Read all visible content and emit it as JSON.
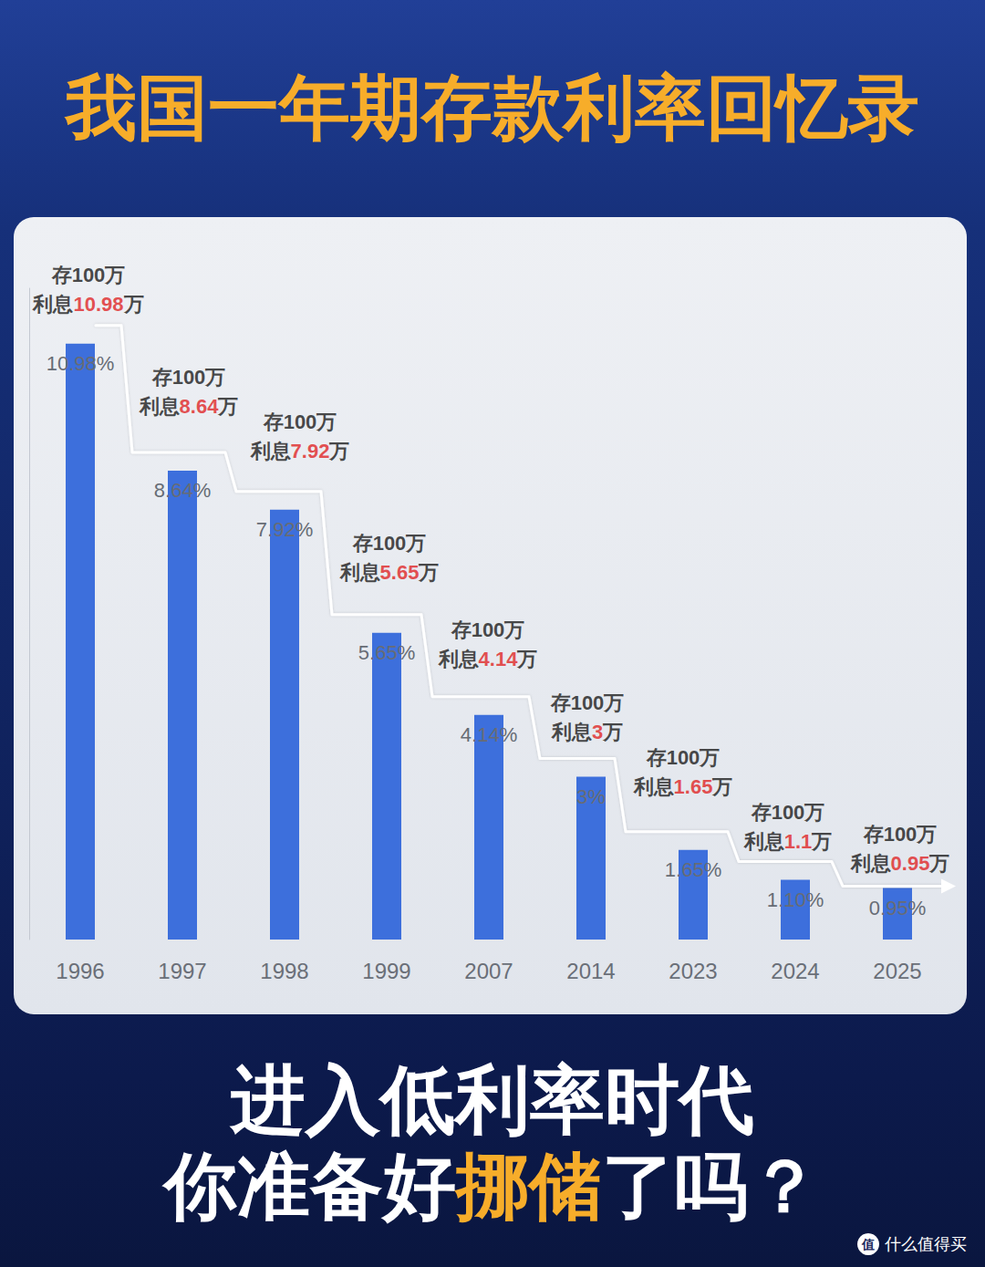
{
  "chart_data": {
    "type": "bar",
    "title": "我国一年期存款利率回忆录",
    "categories": [
      "1996",
      "1997",
      "1998",
      "1999",
      "2007",
      "2014",
      "2023",
      "2024",
      "2025"
    ],
    "values": [
      10.98,
      8.64,
      7.92,
      5.65,
      4.14,
      3,
      1.65,
      1.1,
      0.95
    ],
    "value_labels": [
      "10.98%",
      "8.64%",
      "7.92%",
      "5.65%",
      "4.14%",
      "3%",
      "1.65%",
      "1.10%",
      "0.95%"
    ],
    "data_labels": true,
    "color": "#3d6fdc",
    "ylim": [
      0,
      12
    ],
    "grid": false,
    "tick_labels": "x",
    "annotations": [
      {
        "text": "存100万",
        "prefix": "利息",
        "amount": "10.98",
        "suffix": "万"
      },
      {
        "text": "存100万",
        "prefix": "利息",
        "amount": "8.64",
        "suffix": "万"
      },
      {
        "text": "存100万",
        "prefix": "利息",
        "amount": "7.92",
        "suffix": "万"
      },
      {
        "text": "存100万",
        "prefix": "利息",
        "amount": "5.65",
        "suffix": "万"
      },
      {
        "text": "存100万",
        "prefix": "利息",
        "amount": "4.14",
        "suffix": "万"
      },
      {
        "text": "存100万",
        "prefix": "利息",
        "amount": "3",
        "suffix": "万"
      },
      {
        "text": "存100万",
        "prefix": "利息",
        "amount": "1.65",
        "suffix": "万"
      },
      {
        "text": "存100万",
        "prefix": "利息",
        "amount": "1.1",
        "suffix": "万"
      },
      {
        "text": "存100万",
        "prefix": "利息",
        "amount": "0.95",
        "suffix": "万"
      }
    ],
    "footer": {
      "line1": "进入低利率时代",
      "line2": [
        "你准备好",
        "挪储",
        "了吗？"
      ]
    },
    "watermark": "什么值得买",
    "watermark_icon": "值"
  }
}
